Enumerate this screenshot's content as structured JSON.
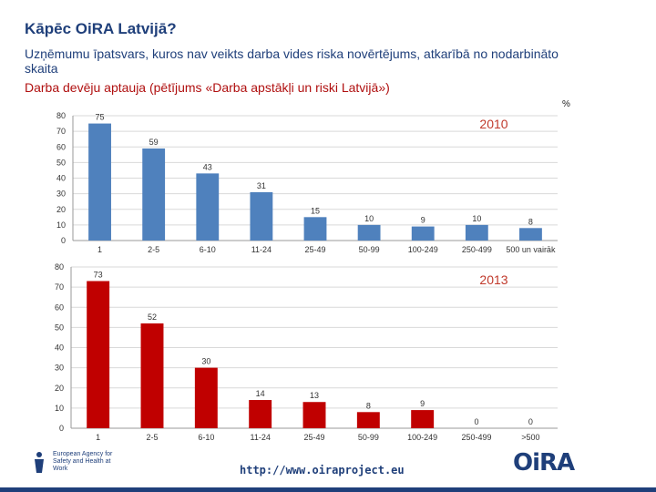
{
  "header": {
    "title": "Kāpēc OiRA Latvijā?",
    "subtitle": "Uzņēmumu īpatsvars, kuros nav veikts darba vides riska novērtējums, atkarībā no nodarbināto skaita",
    "source": "Darba devēju aptauja (pētījums «Darba apstākļi un riski Latvijā»)",
    "unit": "%"
  },
  "chart_data": [
    {
      "type": "bar",
      "title": "2010",
      "categories": [
        "1",
        "2-5",
        "6-10",
        "11-24",
        "25-49",
        "50-99",
        "100-249",
        "250-499",
        "500 un vairāk"
      ],
      "values": [
        75,
        59,
        43,
        31,
        15,
        10,
        9,
        10,
        8
      ],
      "ylim": [
        0,
        80
      ],
      "yticks": [
        0,
        10,
        20,
        30,
        40,
        50,
        60,
        70,
        80
      ],
      "color": "#4f81bd",
      "grid": true
    },
    {
      "type": "bar",
      "title": "2013",
      "categories": [
        "1",
        "2-5",
        "6-10",
        "11-24",
        "25-49",
        "50-99",
        "100-249",
        "250-499",
        ">500"
      ],
      "values": [
        73,
        52,
        30,
        14,
        13,
        8,
        9,
        0,
        0
      ],
      "ylim": [
        0,
        80
      ],
      "yticks": [
        0,
        10,
        20,
        30,
        40,
        50,
        60,
        70,
        80
      ],
      "color": "#c00000",
      "grid": true
    }
  ],
  "footer": {
    "agency_name": "European Agency for Safety and Health at Work",
    "url": "http://www.oiraproject.eu",
    "logo_text": "OiRA"
  }
}
